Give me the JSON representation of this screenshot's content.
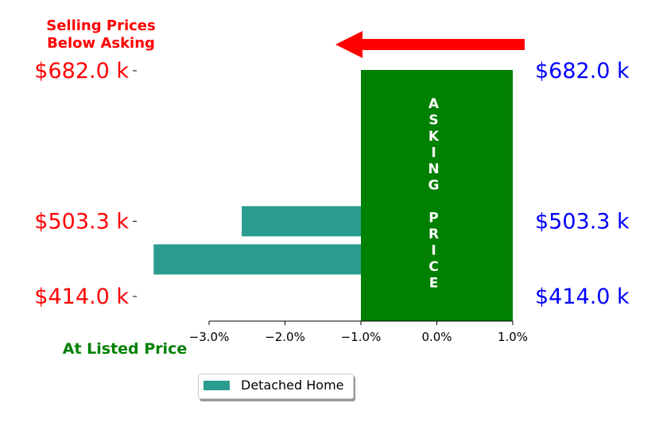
{
  "chart_data": {
    "type": "bar",
    "orientation": "horizontal",
    "title_lines": [
      "Selling Prices",
      "Below Asking"
    ],
    "bottom_label": "At Listed Price",
    "asking_price_band_label": "ASKING PRICE",
    "asking_price_band_range": [
      -1.0,
      1.0
    ],
    "left_tick_labels": [
      "$682.0 k",
      "$503.3 k",
      "$414.0 k"
    ],
    "right_tick_labels": [
      "$682.0 k",
      "$503.3 k",
      "$414.0 k"
    ],
    "x_ticks": [
      -3.0,
      -2.0,
      -1.0,
      0.0,
      1.0
    ],
    "x_tick_labels": [
      "−3.0%",
      "−2.0%",
      "−1.0%",
      "0.0%",
      "1.0%"
    ],
    "xlim": [
      -4.0,
      1.0
    ],
    "ylim": [
      414.0,
      682.0
    ],
    "series": [
      {
        "name": "Detached Home",
        "bars": [
          {
            "start": -2.57,
            "end": -1.0,
            "y": 503.3
          },
          {
            "start": -3.73,
            "end": -1.0,
            "y": 458.0
          }
        ]
      }
    ],
    "legend": {
      "position": "bottom-center",
      "entries": [
        "Detached Home"
      ]
    },
    "colors": {
      "bars": "#2a9d8f",
      "asking_band": "#008000",
      "left_labels": "#ff0000",
      "right_labels": "#0000ff",
      "title": "#ff0000",
      "bottom_label": "#008000",
      "arrow": "#ff0000"
    }
  }
}
